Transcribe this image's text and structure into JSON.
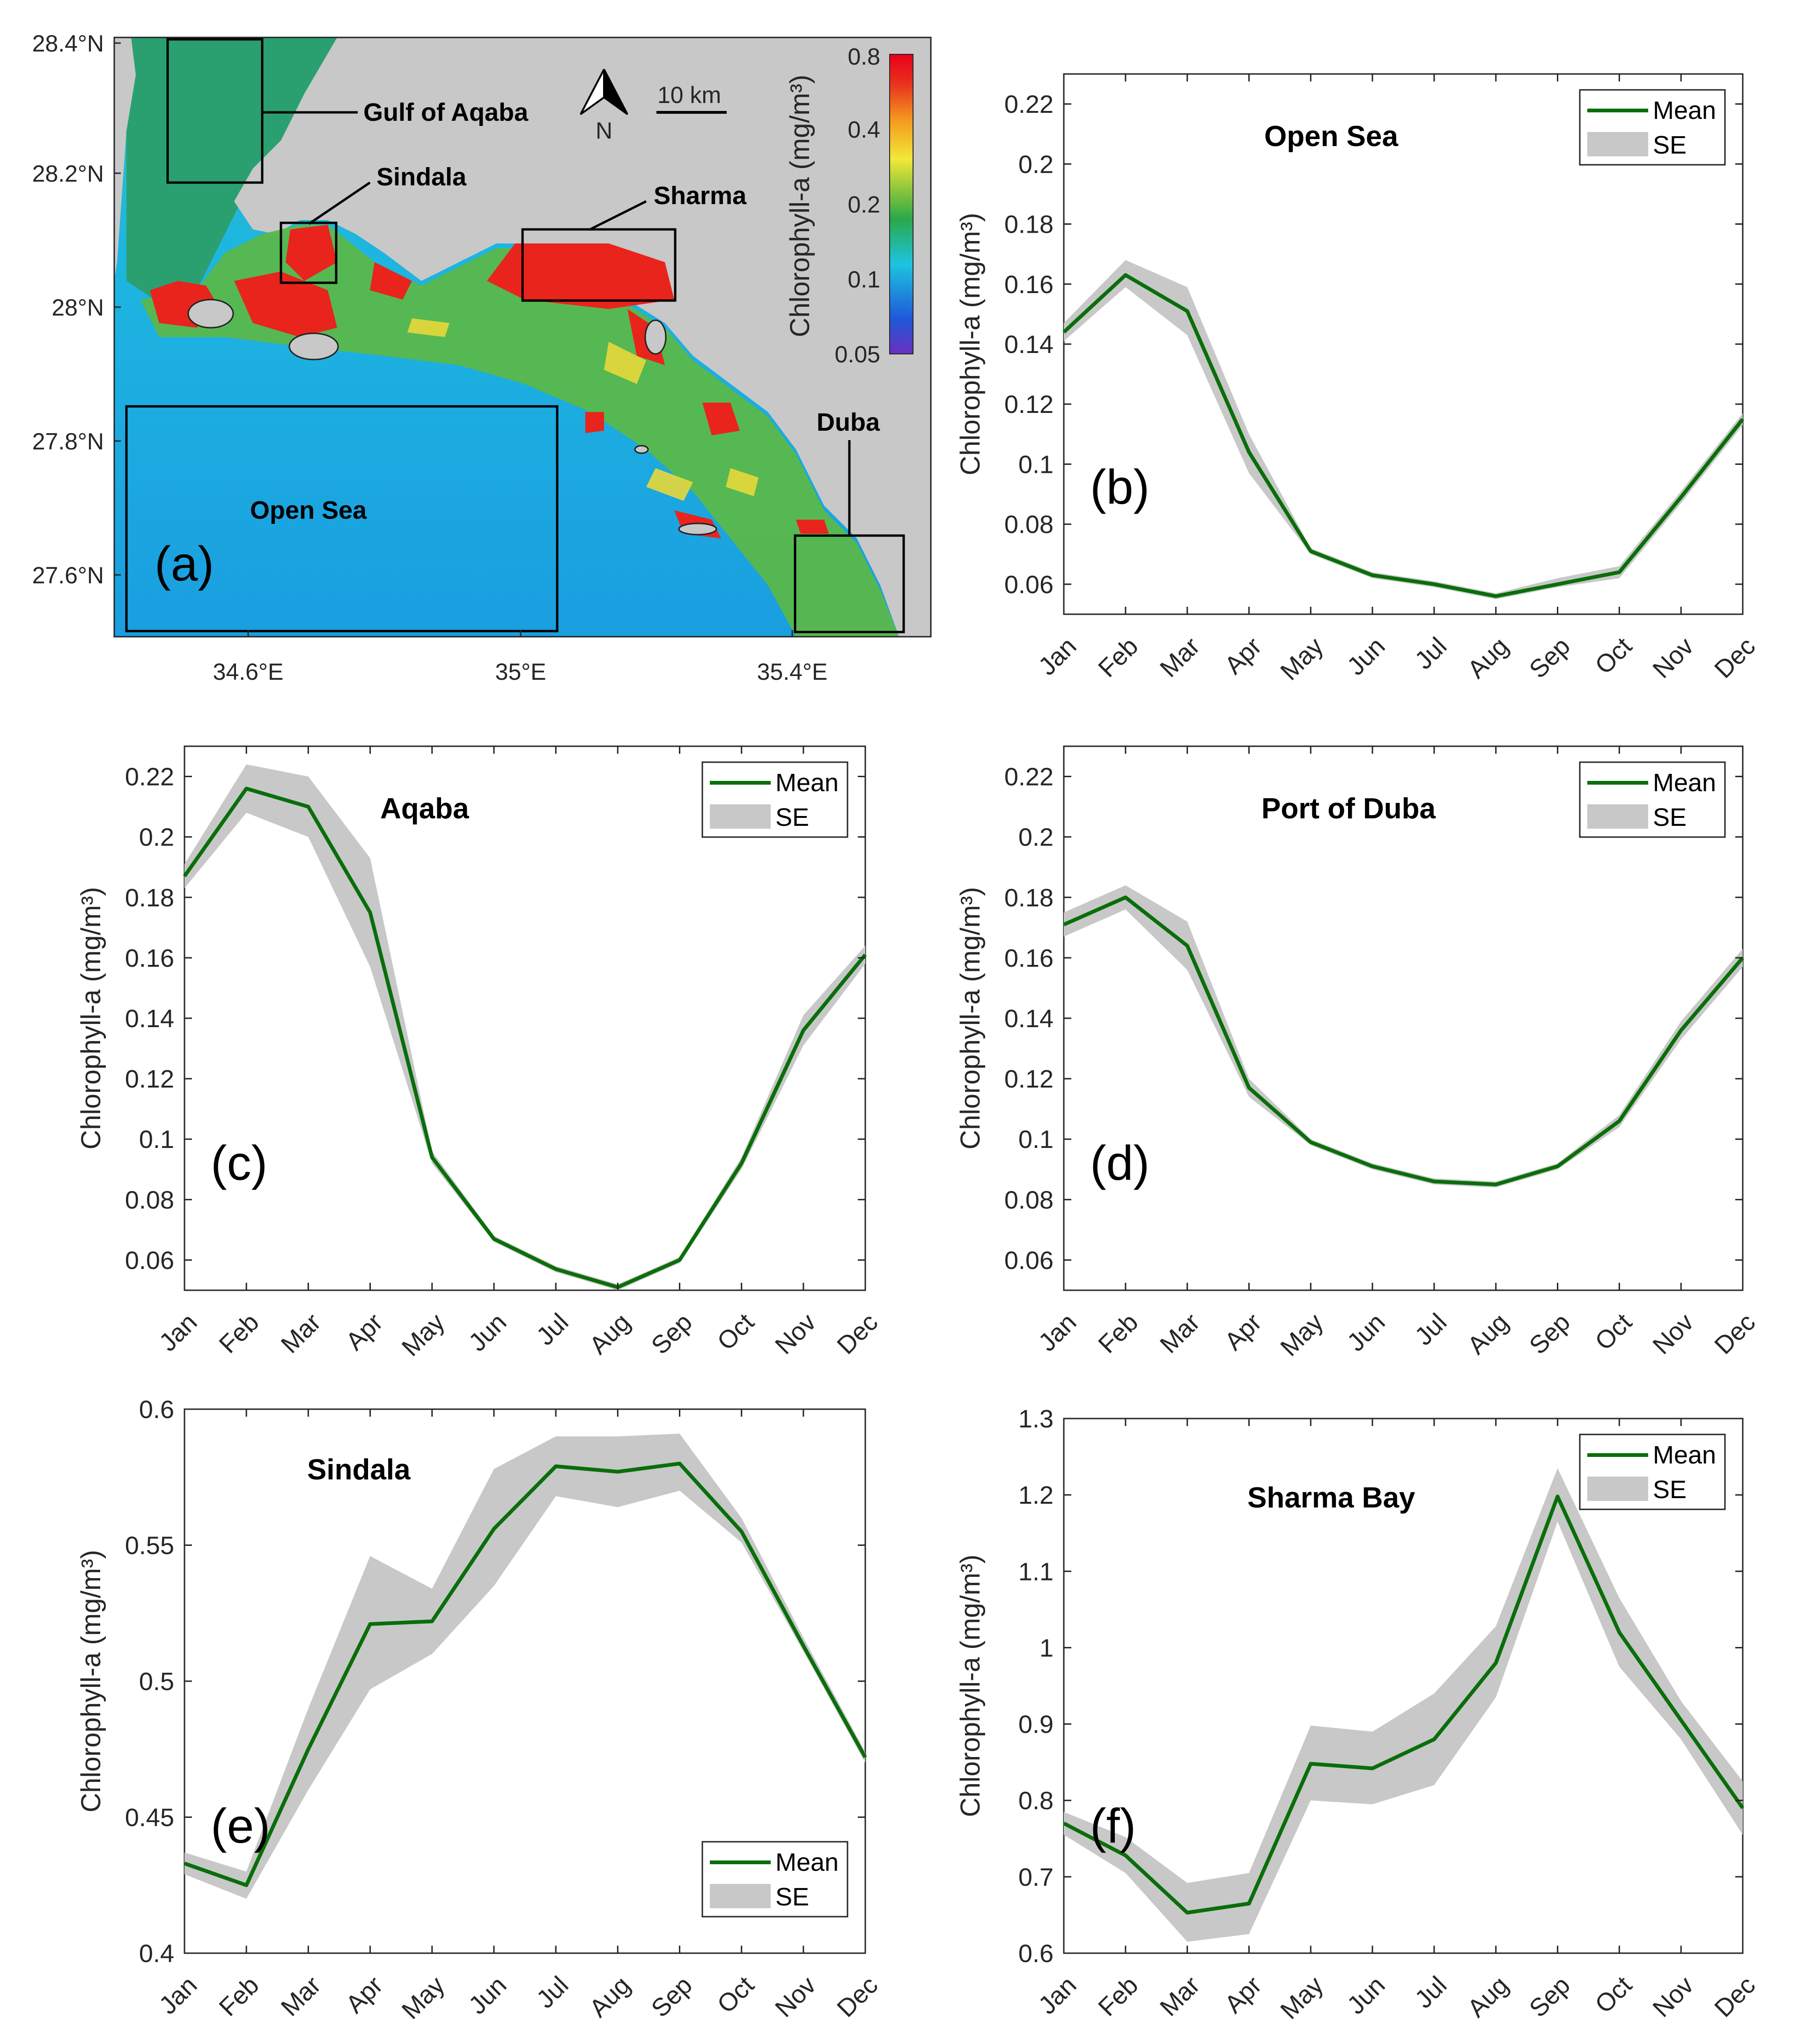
{
  "months": [
    "Jan",
    "Feb",
    "Mar",
    "Apr",
    "May",
    "Jun",
    "Jul",
    "Aug",
    "Sep",
    "Oct",
    "Nov",
    "Dec"
  ],
  "colors": {
    "mean_line": "#0a6e0a",
    "se_band": "#c8c8c8",
    "land": "#c8c8c8"
  },
  "legend": {
    "mean": "Mean",
    "se": "SE"
  },
  "map": {
    "label": "(a)",
    "lat_ticks": [
      "28.4°N",
      "28.2°N",
      "28°N",
      "27.8°N",
      "27.6°N"
    ],
    "lon_ticks": [
      "34.6°E",
      "35°E",
      "35.4°E"
    ],
    "north_label": "N",
    "scale_label": "10 km",
    "colorbar_title": "Chlorophyll-a (mg/m³)",
    "colorbar_ticks": [
      "0.8",
      "0.4",
      "0.2",
      "0.1",
      "0.05"
    ],
    "regions": [
      "Gulf of Aqaba",
      "Sindala",
      "Sharma",
      "Open Sea",
      "Duba"
    ]
  },
  "chart_data": [
    {
      "id": "b",
      "type": "line",
      "label": "(b)",
      "title": "Open Sea",
      "ylabel": "Chlorophyll-a (mg/m³)",
      "categories": [
        "Jan",
        "Feb",
        "Mar",
        "Apr",
        "May",
        "Jun",
        "Jul",
        "Aug",
        "Sep",
        "Oct",
        "Nov",
        "Dec"
      ],
      "ylim": [
        0.05,
        0.23
      ],
      "yticks": [
        "0.06",
        "0.08",
        "0.1",
        "0.12",
        "0.14",
        "0.16",
        "0.18",
        "0.2",
        "0.22"
      ],
      "series": [
        {
          "name": "Mean",
          "values": [
            0.144,
            0.163,
            0.151,
            0.104,
            0.071,
            0.063,
            0.06,
            0.056,
            0.06,
            0.064,
            0.089,
            0.115
          ]
        },
        {
          "name": "SE",
          "lower": [
            0.141,
            0.159,
            0.143,
            0.097,
            0.07,
            0.062,
            0.059,
            0.055,
            0.059,
            0.062,
            0.087,
            0.113
          ],
          "upper": [
            0.147,
            0.168,
            0.159,
            0.11,
            0.072,
            0.064,
            0.061,
            0.057,
            0.062,
            0.066,
            0.091,
            0.117
          ]
        }
      ],
      "legend_position": "top-right"
    },
    {
      "id": "c",
      "type": "line",
      "label": "(c)",
      "title": "Aqaba",
      "ylabel": "Chlorophyll-a (mg/m³)",
      "categories": [
        "Jan",
        "Feb",
        "Mar",
        "Apr",
        "May",
        "Jun",
        "Jul",
        "Aug",
        "Sep",
        "Oct",
        "Nov",
        "Dec"
      ],
      "ylim": [
        0.05,
        0.23
      ],
      "yticks": [
        "0.06",
        "0.08",
        "0.1",
        "0.12",
        "0.14",
        "0.16",
        "0.18",
        "0.2",
        "0.22"
      ],
      "series": [
        {
          "name": "Mean",
          "values": [
            0.187,
            0.216,
            0.21,
            0.175,
            0.094,
            0.067,
            0.057,
            0.051,
            0.06,
            0.092,
            0.136,
            0.161
          ]
        },
        {
          "name": "SE",
          "lower": [
            0.183,
            0.208,
            0.2,
            0.157,
            0.092,
            0.066,
            0.056,
            0.05,
            0.059,
            0.09,
            0.131,
            0.158
          ],
          "upper": [
            0.191,
            0.224,
            0.22,
            0.193,
            0.096,
            0.068,
            0.058,
            0.052,
            0.061,
            0.094,
            0.141,
            0.164
          ]
        }
      ],
      "legend_position": "top-right"
    },
    {
      "id": "d",
      "type": "line",
      "label": "(d)",
      "title": "Port of Duba",
      "ylabel": "Chlorophyll-a (mg/m³)",
      "categories": [
        "Jan",
        "Feb",
        "Mar",
        "Apr",
        "May",
        "Jun",
        "Jul",
        "Aug",
        "Sep",
        "Oct",
        "Nov",
        "Dec"
      ],
      "ylim": [
        0.05,
        0.23
      ],
      "yticks": [
        "0.06",
        "0.08",
        "0.1",
        "0.12",
        "0.14",
        "0.16",
        "0.18",
        "0.2",
        "0.22"
      ],
      "series": [
        {
          "name": "Mean",
          "values": [
            0.171,
            0.18,
            0.164,
            0.117,
            0.099,
            0.091,
            0.086,
            0.085,
            0.091,
            0.106,
            0.136,
            0.16
          ]
        },
        {
          "name": "SE",
          "lower": [
            0.167,
            0.176,
            0.156,
            0.114,
            0.098,
            0.09,
            0.085,
            0.084,
            0.09,
            0.104,
            0.133,
            0.157
          ],
          "upper": [
            0.175,
            0.184,
            0.172,
            0.12,
            0.1,
            0.092,
            0.087,
            0.086,
            0.092,
            0.108,
            0.139,
            0.163
          ]
        }
      ],
      "legend_position": "top-right"
    },
    {
      "id": "e",
      "type": "line",
      "label": "(e)",
      "title": "Sindala",
      "ylabel": "Chlorophyll-a (mg/m³)",
      "categories": [
        "Jan",
        "Feb",
        "Mar",
        "Apr",
        "May",
        "Jun",
        "Jul",
        "Aug",
        "Sep",
        "Oct",
        "Nov",
        "Dec"
      ],
      "ylim": [
        0.4,
        0.6
      ],
      "yticks": [
        "0.4",
        "0.45",
        "0.5",
        "0.55",
        "0.6"
      ],
      "series": [
        {
          "name": "Mean",
          "values": [
            0.433,
            0.425,
            0.475,
            0.521,
            0.522,
            0.556,
            0.579,
            0.577,
            0.58,
            0.555,
            0.513,
            0.472
          ]
        },
        {
          "name": "SE",
          "lower": [
            0.429,
            0.42,
            0.46,
            0.497,
            0.51,
            0.535,
            0.568,
            0.564,
            0.57,
            0.551,
            0.511,
            0.47
          ],
          "upper": [
            0.437,
            0.43,
            0.49,
            0.546,
            0.534,
            0.578,
            0.59,
            0.59,
            0.591,
            0.56,
            0.516,
            0.474
          ]
        }
      ],
      "legend_position": "bottom-right"
    },
    {
      "id": "f",
      "type": "line",
      "label": "(f)",
      "title": "Sharma Bay",
      "ylabel": "Chlorophyll-a (mg/m³)",
      "categories": [
        "Jan",
        "Feb",
        "Mar",
        "Apr",
        "May",
        "Jun",
        "Jul",
        "Aug",
        "Sep",
        "Oct",
        "Nov",
        "Dec"
      ],
      "ylim": [
        0.6,
        1.3
      ],
      "yticks": [
        "0.6",
        "0.7",
        "0.8",
        "0.9",
        "1",
        "1.1",
        "1.2",
        "1.3"
      ],
      "series": [
        {
          "name": "Mean",
          "values": [
            0.77,
            0.728,
            0.653,
            0.665,
            0.848,
            0.842,
            0.88,
            0.98,
            1.198,
            1.02,
            0.905,
            0.79
          ]
        },
        {
          "name": "SE",
          "lower": [
            0.755,
            0.705,
            0.615,
            0.625,
            0.8,
            0.795,
            0.82,
            0.935,
            1.165,
            0.975,
            0.88,
            0.755
          ],
          "upper": [
            0.785,
            0.752,
            0.692,
            0.705,
            0.898,
            0.89,
            0.94,
            1.028,
            1.235,
            1.065,
            0.93,
            0.825
          ]
        }
      ],
      "legend_position": "top-right"
    }
  ]
}
